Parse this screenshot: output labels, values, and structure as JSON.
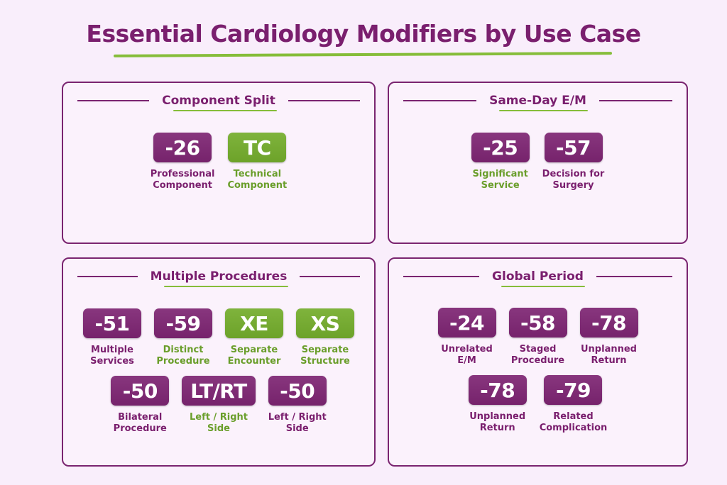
{
  "title": "Essential Cardiology Modifiers by Use Case",
  "colors": {
    "purple": "#7e2573",
    "green": "#74ad2c",
    "purple_text": "#7a1f6e",
    "green_text": "#6a9e2b",
    "background": "#f9eefb"
  },
  "panels": [
    {
      "heading": "Component Split",
      "rows": [
        [
          {
            "code": "-26",
            "badge": "purple",
            "label": [
              "Professional",
              "Component"
            ],
            "label_color": "purple"
          },
          {
            "code": "TC",
            "badge": "green",
            "label": [
              "Technical",
              "Component"
            ],
            "label_color": "green"
          }
        ]
      ]
    },
    {
      "heading": "Same-Day E/M",
      "rows": [
        [
          {
            "code": "-25",
            "badge": "purple",
            "label": [
              "Significant",
              "Service"
            ],
            "label_color": "green"
          },
          {
            "code": "-57",
            "badge": "purple",
            "label": [
              "Decision for",
              "Surgery"
            ],
            "label_color": "purple"
          }
        ]
      ]
    },
    {
      "heading": "Multiple Procedures",
      "rows": [
        [
          {
            "code": "-51",
            "badge": "purple",
            "label": [
              "Multiple",
              "Services"
            ],
            "label_color": "purple"
          },
          {
            "code": "-59",
            "badge": "purple",
            "label": [
              "Distinct",
              "Procedure"
            ],
            "label_color": "green"
          },
          {
            "code": "XE",
            "badge": "green",
            "label": [
              "Separate",
              "Encounter"
            ],
            "label_color": "green"
          },
          {
            "code": "XS",
            "badge": "green",
            "label": [
              "Separate",
              "Structure"
            ],
            "label_color": "green"
          }
        ],
        [
          {
            "code": "-50",
            "badge": "purple",
            "label": [
              "Bilateral",
              "Procedure"
            ],
            "label_color": "purple"
          },
          {
            "code": "LT/RT",
            "badge": "purple",
            "label": [
              "Left / Right",
              "Side"
            ],
            "label_color": "green"
          },
          {
            "code": "-50",
            "badge": "purple",
            "label": [
              "Left / Right",
              "Side"
            ],
            "label_color": "purple"
          }
        ]
      ]
    },
    {
      "heading": "Global Period",
      "rows": [
        [
          {
            "code": "-24",
            "badge": "purple",
            "label": [
              "Unrelated",
              "E/M"
            ],
            "label_color": "purple"
          },
          {
            "code": "-58",
            "badge": "purple",
            "label": [
              "Staged",
              "Procedure"
            ],
            "label_color": "purple"
          },
          {
            "code": "-78",
            "badge": "purple",
            "label": [
              "Unplanned",
              "Return"
            ],
            "label_color": "purple"
          }
        ],
        [
          {
            "code": "-78",
            "badge": "purple",
            "label": [
              "Unplanned",
              "Return"
            ],
            "label_color": "purple"
          },
          {
            "code": "-79",
            "badge": "purple",
            "label": [
              "Related",
              "Complication"
            ],
            "label_color": "purple"
          }
        ]
      ]
    }
  ]
}
